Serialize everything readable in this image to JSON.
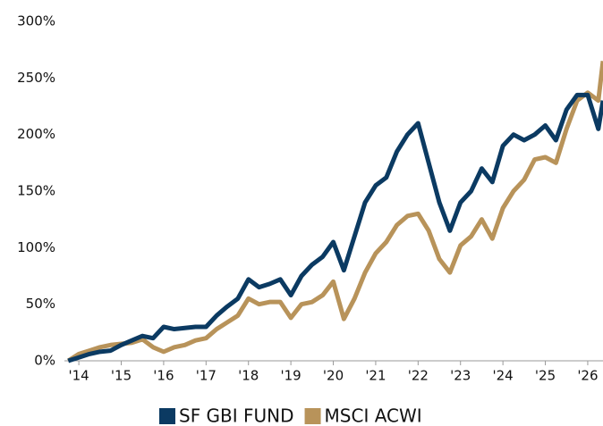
{
  "chart_data": {
    "type": "line",
    "x": [
      2013.75,
      2014.0,
      2014.25,
      2014.5,
      2014.75,
      2015.0,
      2015.25,
      2015.5,
      2015.75,
      2016.0,
      2016.25,
      2016.5,
      2016.75,
      2017.0,
      2017.25,
      2017.5,
      2017.75,
      2018.0,
      2018.25,
      2018.5,
      2018.75,
      2019.0,
      2019.25,
      2019.5,
      2019.75,
      2020.0,
      2020.25,
      2020.5,
      2020.75,
      2021.0,
      2021.25,
      2021.5,
      2021.75,
      2022.0,
      2022.25,
      2022.5,
      2022.75,
      2023.0,
      2023.25,
      2023.5,
      2023.75,
      2024.0,
      2024.25,
      2024.5,
      2024.75,
      2025.0,
      2025.25,
      2025.5,
      2025.75,
      2026.0,
      2026.25,
      2026.36
    ],
    "series": [
      {
        "name": "SF GBI FUND",
        "color": "#0b3a62",
        "values": [
          0,
          3,
          6,
          8,
          9,
          14,
          18,
          22,
          20,
          30,
          28,
          29,
          30,
          30,
          40,
          48,
          55,
          72,
          65,
          68,
          72,
          58,
          75,
          85,
          92,
          105,
          80,
          110,
          140,
          155,
          162,
          185,
          200,
          210,
          175,
          140,
          115,
          140,
          150,
          170,
          158,
          190,
          200,
          195,
          200,
          208,
          195,
          222,
          235,
          235,
          205,
          230
        ]
      },
      {
        "name": "MSCI ACWI",
        "color": "#b8935a",
        "values": [
          0,
          6,
          9,
          12,
          14,
          15,
          16,
          19,
          12,
          8,
          12,
          14,
          18,
          20,
          28,
          34,
          40,
          55,
          50,
          52,
          52,
          38,
          50,
          52,
          58,
          70,
          37,
          55,
          78,
          95,
          105,
          120,
          128,
          130,
          115,
          90,
          78,
          102,
          110,
          125,
          108,
          135,
          150,
          160,
          178,
          180,
          175,
          205,
          230,
          237,
          230,
          265
        ]
      }
    ],
    "xlim": [
      2013.66,
      2026.36
    ],
    "xticks": [
      {
        "value": 2014,
        "label": "'14"
      },
      {
        "value": 2015,
        "label": "'15"
      },
      {
        "value": 2016,
        "label": "'16"
      },
      {
        "value": 2017,
        "label": "'17"
      },
      {
        "value": 2018,
        "label": "'18"
      },
      {
        "value": 2019,
        "label": "'19"
      },
      {
        "value": 2020,
        "label": "'20"
      },
      {
        "value": 2021,
        "label": "'21"
      },
      {
        "value": 2022,
        "label": "'22"
      },
      {
        "value": 2023,
        "label": "'23"
      },
      {
        "value": 2024,
        "label": "'24"
      },
      {
        "value": 2025,
        "label": "'25"
      },
      {
        "value": 2026,
        "label": "'26"
      }
    ],
    "ylim": [
      0,
      300
    ],
    "yticks": [
      {
        "value": 0,
        "label": "0%"
      },
      {
        "value": 50,
        "label": "50%"
      },
      {
        "value": 100,
        "label": "100%"
      },
      {
        "value": 150,
        "label": "150%"
      },
      {
        "value": 200,
        "label": "200%"
      },
      {
        "value": 250,
        "label": "250%"
      },
      {
        "value": 300,
        "label": "300%"
      }
    ],
    "legend": "bottom"
  }
}
